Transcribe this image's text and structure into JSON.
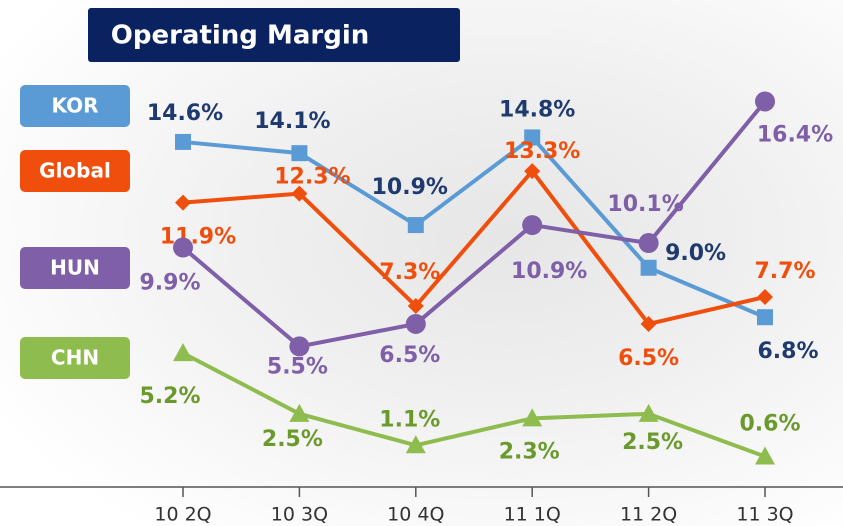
{
  "chart_data": {
    "type": "line",
    "title": "Operating Margin",
    "categories": [
      "10 2Q",
      "10 3Q",
      "10 4Q",
      "11 1Q",
      "11 2Q",
      "11 3Q"
    ],
    "ylim": [
      0,
      17
    ],
    "series": [
      {
        "name": "KOR",
        "color": "#5b9bd5",
        "label_color": "#1f3a6e",
        "marker": "square",
        "values": [
          14.6,
          14.1,
          10.9,
          14.8,
          9.0,
          6.8
        ],
        "value_labels": [
          "14.6%",
          "14.1%",
          "10.9%",
          "14.8%",
          "9.0%",
          "6.8%"
        ]
      },
      {
        "name": "Global",
        "color": "#f04e0c",
        "label_color": "#f04e0c",
        "marker": "diamond",
        "values": [
          11.9,
          12.3,
          7.3,
          13.3,
          6.5,
          7.7
        ],
        "value_labels": [
          "11.9%",
          "12.3%",
          "7.3%",
          "13.3%",
          "6.5%",
          "7.7%"
        ]
      },
      {
        "name": "HUN",
        "color": "#7e5fa8",
        "label_color": "#7e5fa8",
        "marker": "circle",
        "values": [
          9.9,
          5.5,
          6.5,
          10.9,
          10.1,
          16.4
        ],
        "value_labels": [
          "9.9%",
          "5.5%",
          "6.5%",
          "10.9%",
          "10.1%",
          "16.4%"
        ]
      },
      {
        "name": "CHN",
        "color": "#8fbc4f",
        "label_color": "#6a9a2c",
        "marker": "triangle",
        "values": [
          5.2,
          2.5,
          1.1,
          2.3,
          2.5,
          0.6
        ],
        "value_labels": [
          "5.2%",
          "2.5%",
          "1.1%",
          "2.3%",
          "2.5%",
          "0.6%"
        ]
      }
    ]
  }
}
